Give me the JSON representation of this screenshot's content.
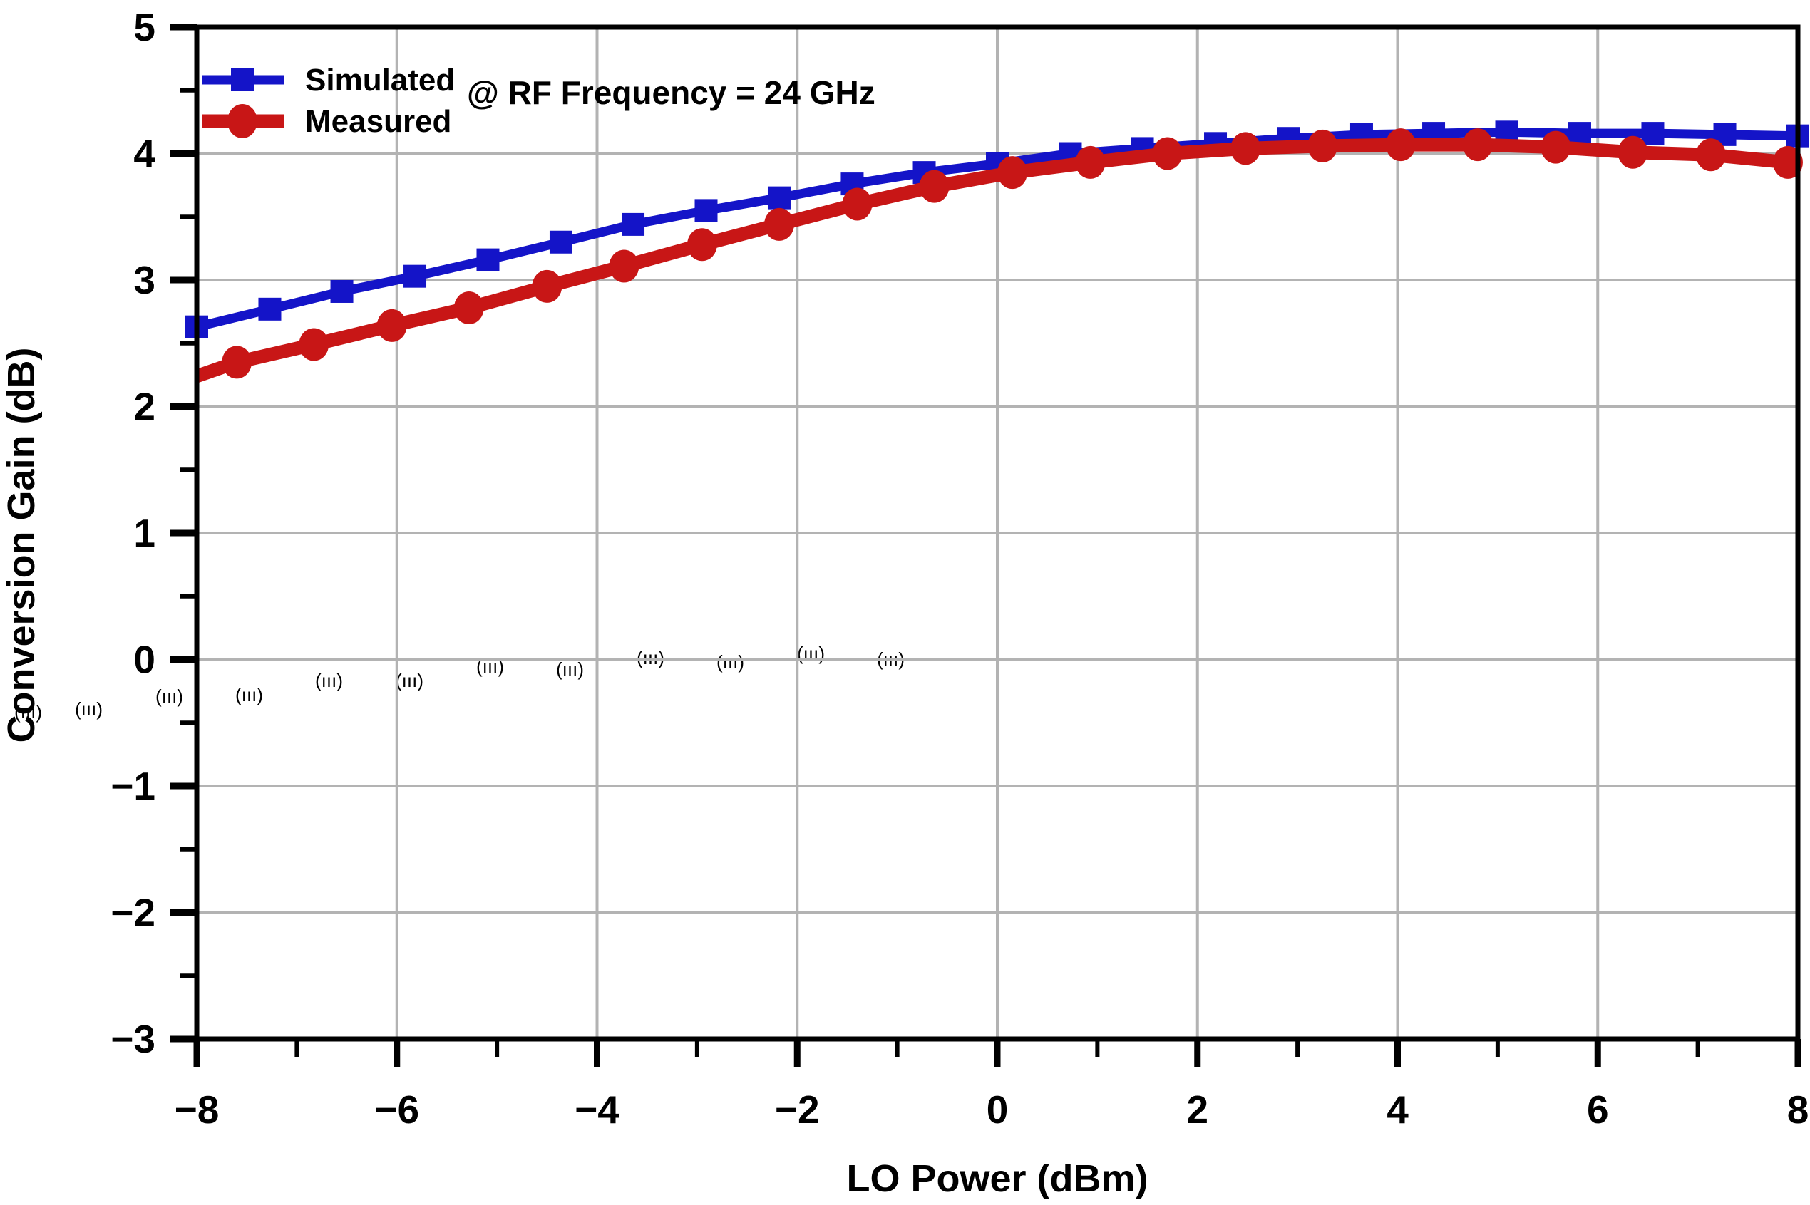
{
  "chart_data": {
    "type": "line",
    "title": "",
    "annotation": "@ RF Frequency = 24 GHz",
    "xlabel": "LO Power (dBm)",
    "ylabel": "Conversion Gain (dB)",
    "xlim": [
      -8,
      8
    ],
    "ylim": [
      -3,
      5
    ],
    "x_major_ticks": [
      -8,
      -6,
      -4,
      -2,
      0,
      2,
      4,
      6,
      8
    ],
    "x_tick_labels": [
      "−8",
      "−6",
      "−4",
      "−2",
      "0",
      "2",
      "4",
      "6",
      "8"
    ],
    "x_minor_tick_step": 1,
    "y_major_ticks": [
      5,
      4,
      3,
      2,
      1,
      0,
      -1,
      -2,
      -3
    ],
    "y_tick_labels": [
      "5",
      "4",
      "3",
      "2",
      "1",
      "0",
      "−1",
      "−2",
      "−3"
    ],
    "y_minor_tick_step": 0.5,
    "grid": "major-both",
    "grid_color": "#b3b3b3",
    "axis_color": "#000000",
    "background_color": "#ffffff",
    "legend_position": "top-left-inside",
    "series": [
      {
        "name": "Simulated",
        "color": "#1414C8",
        "marker": "square",
        "marker_size": 32,
        "line_width": 13,
        "marker_index_range": [
          0,
          22
        ],
        "x": [
          -8,
          -7.27,
          -6.55,
          -5.82,
          -5.09,
          -4.36,
          -3.64,
          -2.91,
          -2.18,
          -1.45,
          -0.73,
          0,
          0.73,
          1.45,
          2.18,
          2.91,
          3.64,
          4.36,
          5.09,
          5.82,
          6.55,
          7.27,
          8
        ],
        "y": [
          2.63,
          2.77,
          2.91,
          3.03,
          3.16,
          3.3,
          3.44,
          3.55,
          3.65,
          3.76,
          3.85,
          3.92,
          4.0,
          4.04,
          4.08,
          4.12,
          4.15,
          4.16,
          4.17,
          4.16,
          4.16,
          4.15,
          4.14
        ]
      },
      {
        "name": "Measured",
        "color": "#C81616",
        "marker": "circle",
        "marker_size": 44,
        "line_width": 19,
        "marker_index_range": [
          1,
          21
        ],
        "x": [
          -8,
          -7.6,
          -6.83,
          -6.05,
          -5.28,
          -4.5,
          -3.73,
          -2.95,
          -2.18,
          -1.4,
          -0.63,
          0.15,
          0.93,
          1.7,
          2.48,
          3.25,
          4.03,
          4.8,
          5.58,
          6.35,
          7.13,
          7.9,
          8
        ],
        "y": [
          2.24,
          2.35,
          2.49,
          2.64,
          2.78,
          2.95,
          3.11,
          3.28,
          3.44,
          3.6,
          3.74,
          3.85,
          3.93,
          4.0,
          4.04,
          4.06,
          4.07,
          4.07,
          4.05,
          4.01,
          3.99,
          3.93,
          3.92
        ]
      }
    ],
    "background_artifacts": {
      "description": "faint pink illegible watermark remnants in a row across the left 60% of the plot",
      "color": "rgba(220,90,90,0.25)",
      "positions": [
        [
          20,
          1012
        ],
        [
          105,
          998
        ],
        [
          218,
          990
        ],
        [
          330,
          978
        ],
        [
          442,
          968
        ],
        [
          555,
          958
        ],
        [
          668,
          948
        ],
        [
          780,
          942
        ],
        [
          893,
          936
        ],
        [
          1005,
          932
        ],
        [
          1118,
          930
        ],
        [
          1230,
          928
        ]
      ]
    }
  }
}
